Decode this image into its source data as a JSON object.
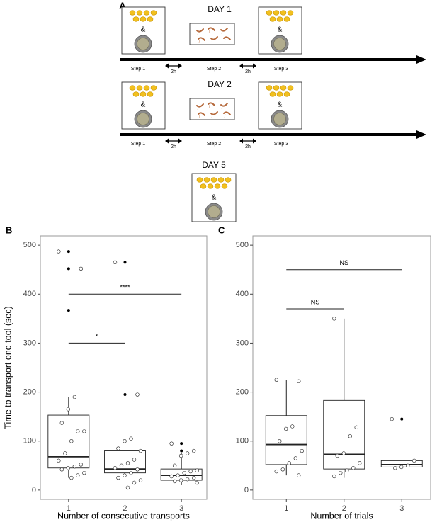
{
  "schematic": {
    "panel_label": "A",
    "days": [
      {
        "title": "DAY 1",
        "amp_left": "&",
        "amp_right": "&",
        "steps": [
          "Step 1",
          "Step 2",
          "Step 3"
        ],
        "intervals": [
          "2h",
          "2h"
        ]
      },
      {
        "title": "DAY 2",
        "amp_left": "&",
        "amp_right": "&",
        "steps": [
          "Step 1",
          "Step 2",
          "Step 3"
        ],
        "intervals": [
          "2h",
          "2h"
        ]
      }
    ],
    "final_day": {
      "title": "DAY 5",
      "amp": "&"
    }
  },
  "chart_data": [
    {
      "type": "box",
      "panel_label": "B",
      "y_label": "Time to transport one tool (sec)",
      "x_label": "Number of consecutive transports",
      "x": [
        1,
        2,
        3
      ],
      "xlim": [
        0.5,
        3.45
      ],
      "xticks": [
        1,
        2,
        3
      ],
      "ylim": [
        -19,
        519
      ],
      "yticks": [
        0,
        100,
        200,
        300,
        400,
        500
      ],
      "boxes": [
        {
          "low": 25,
          "q1": 45,
          "median": 68,
          "q3": 153,
          "high": 190,
          "outliers": [
            487,
            452,
            367
          ],
          "points": [
            487,
            452,
            190,
            165,
            137,
            120,
            120,
            100,
            75,
            60,
            52,
            48,
            45,
            42,
            35,
            30,
            25
          ]
        },
        {
          "low": 5,
          "q1": 35,
          "median": 43,
          "q3": 80,
          "high": 105,
          "outliers": [
            465,
            195
          ],
          "points": [
            465,
            195,
            105,
            100,
            85,
            80,
            62,
            55,
            50,
            45,
            42,
            35,
            30,
            25,
            20,
            15,
            5
          ]
        },
        {
          "low": 10,
          "q1": 20,
          "median": 30,
          "q3": 43,
          "high": 75,
          "outliers": [
            95,
            80
          ],
          "points": [
            95,
            80,
            75,
            70,
            50,
            40,
            38,
            35,
            30,
            28,
            25,
            22,
            20,
            18,
            15
          ]
        }
      ],
      "annotations": [
        {
          "x": [
            1,
            3
          ],
          "y": 400,
          "label": "****"
        },
        {
          "x": [
            1,
            2
          ],
          "y": 300,
          "label": "*"
        }
      ]
    },
    {
      "type": "box",
      "panel_label": "C",
      "x_label": "Number of trials",
      "x": [
        1,
        2,
        3
      ],
      "xlim": [
        0.42,
        3.5
      ],
      "xticks": [
        1,
        2,
        3
      ],
      "ylim": [
        -19,
        519
      ],
      "yticks": [
        0,
        100,
        200,
        300,
        400,
        500
      ],
      "boxes": [
        {
          "low": 30,
          "q1": 52,
          "median": 93,
          "q3": 152,
          "high": 225,
          "outliers": [],
          "points": [
            225,
            222,
            130,
            125,
            100,
            80,
            65,
            55,
            42,
            38,
            30
          ]
        },
        {
          "low": 25,
          "q1": 43,
          "median": 73,
          "q3": 183,
          "high": 350,
          "outliers": [],
          "points": [
            350,
            128,
            110,
            75,
            70,
            55,
            45,
            40,
            35,
            28
          ]
        },
        {
          "low": 45,
          "q1": 47,
          "median": 52,
          "q3": 60,
          "high": 60,
          "outliers": [
            145
          ],
          "points": [
            145,
            60,
            50,
            47,
            45
          ]
        }
      ],
      "annotations": [
        {
          "x": [
            1,
            2
          ],
          "y": 370,
          "label": "NS"
        },
        {
          "x": [
            1,
            3
          ],
          "y": 450,
          "label": "NS"
        }
      ]
    }
  ]
}
